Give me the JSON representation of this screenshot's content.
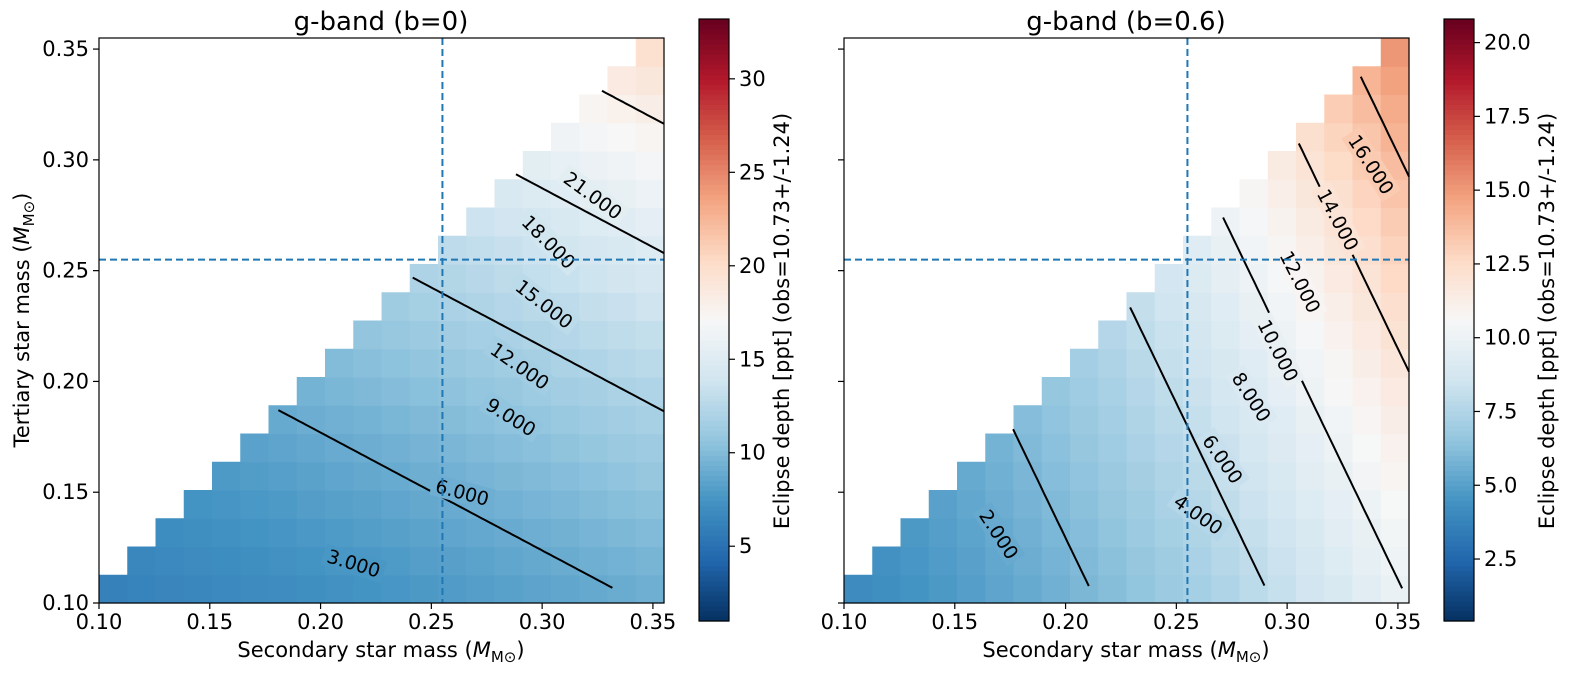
{
  "chart_data": [
    {
      "type": "heatmap",
      "title": "g-band (b=0)",
      "xlabel": "Secondary star mass",
      "xlabel_unit": "M⊙",
      "ylabel": "Tertiary star mass",
      "ylabel_unit": "M⊙",
      "xlim": [
        0.1,
        0.355
      ],
      "ylim": [
        0.1,
        0.355
      ],
      "x_ticks": [
        "0.10",
        "0.15",
        "0.20",
        "0.25",
        "0.30",
        "0.35"
      ],
      "y_ticks": [
        "0.10",
        "0.15",
        "0.20",
        "0.25",
        "0.30",
        "0.35"
      ],
      "grid_min": 0.1,
      "grid_step": 0.01275,
      "grid_n": 20,
      "colormap": "RdBu_r",
      "colorbar": {
        "label": "Eclipse depth [ppt] (obs=10.73+/-1.24)",
        "range": [
          1.0,
          33.2
        ],
        "ticks": [
          "5",
          "10",
          "15",
          "20",
          "25",
          "30"
        ]
      },
      "depth_model": {
        "ax": 13.3,
        "ay": 25.0,
        "xc": 0.22,
        "yc": 0.2,
        "base": 10.0,
        "kx": 14.0,
        "ky": 8.0,
        "offset": 1.2
      },
      "contour_levels": [
        3,
        6,
        9,
        12,
        15,
        18,
        21
      ],
      "contour_labels": [
        {
          "text": "3.000",
          "x": 0.215,
          "y": 0.118,
          "angle": 17
        },
        {
          "text": "6.000",
          "x": 0.264,
          "y": 0.15,
          "angle": 15
        },
        {
          "text": "9.000",
          "x": 0.286,
          "y": 0.184,
          "angle": 32
        },
        {
          "text": "12.000",
          "x": 0.29,
          "y": 0.207,
          "angle": 35
        },
        {
          "text": "15.000",
          "x": 0.301,
          "y": 0.235,
          "angle": 38
        },
        {
          "text": "18.000",
          "x": 0.303,
          "y": 0.263,
          "angle": 45
        },
        {
          "text": "21.000",
          "x": 0.323,
          "y": 0.284,
          "angle": 36
        }
      ],
      "reference_x": 0.255,
      "reference_y": 0.255
    },
    {
      "type": "heatmap",
      "title": "g-band (b=0.6)",
      "xlabel": "Secondary star mass",
      "xlabel_unit": "M⊙",
      "ylabel": "",
      "xlim": [
        0.1,
        0.355
      ],
      "ylim": [
        0.1,
        0.355
      ],
      "x_ticks": [
        "0.10",
        "0.15",
        "0.20",
        "0.25",
        "0.30",
        "0.35"
      ],
      "y_ticks": [],
      "grid_min": 0.1,
      "grid_step": 0.01275,
      "grid_n": 20,
      "colormap": "RdBu_r",
      "colorbar": {
        "label": "Eclipse depth [ppt] (obs=10.73+/-1.24)",
        "range": [
          0.4,
          20.8
        ],
        "ticks": [
          "2.5",
          "5.0",
          "7.5",
          "10.0",
          "12.5",
          "15.0",
          "17.5",
          "20.0"
        ]
      },
      "depth_model": {
        "ax": 29.0,
        "ay": 14.0,
        "xc": 0.22,
        "yc": 0.2,
        "base": 7.3,
        "kx": 12.0,
        "ky": 8.0,
        "offset": 0.5
      },
      "contour_levels": [
        2,
        4,
        6,
        8,
        10,
        12,
        14,
        16
      ],
      "contour_labels": [
        {
          "text": "2.000",
          "x": 0.17,
          "y": 0.131,
          "angle": 57
        },
        {
          "text": "4.000",
          "x": 0.26,
          "y": 0.14,
          "angle": 35
        },
        {
          "text": "6.000",
          "x": 0.271,
          "y": 0.165,
          "angle": 55
        },
        {
          "text": "8.000",
          "x": 0.284,
          "y": 0.193,
          "angle": 57
        },
        {
          "text": "10.000",
          "x": 0.296,
          "y": 0.214,
          "angle": 63
        },
        {
          "text": "12.000",
          "x": 0.306,
          "y": 0.245,
          "angle": 63
        },
        {
          "text": "14.000",
          "x": 0.323,
          "y": 0.273,
          "angle": 62
        },
        {
          "text": "16.000",
          "x": 0.338,
          "y": 0.298,
          "angle": 57
        }
      ],
      "reference_x": 0.255,
      "reference_y": 0.255
    }
  ]
}
